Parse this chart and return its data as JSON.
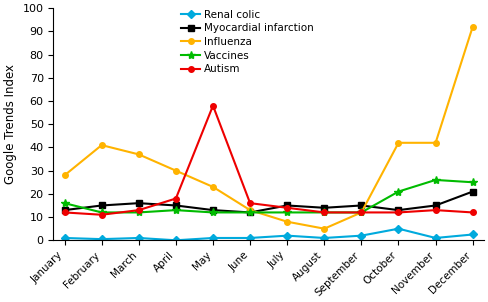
{
  "months": [
    "January",
    "February",
    "March",
    "April",
    "May",
    "June",
    "July",
    "August",
    "September",
    "October",
    "November",
    "December"
  ],
  "series": {
    "Renal colic": {
      "values": [
        1,
        0.5,
        1,
        0,
        1,
        1,
        2,
        1,
        2,
        5,
        1,
        2.5
      ],
      "color": "#00AADD",
      "marker": "D",
      "linewidth": 1.5,
      "markersize": 4
    },
    "Myocardial infarction": {
      "values": [
        13,
        15,
        16,
        15,
        13,
        12,
        15,
        14,
        15,
        13,
        15,
        21
      ],
      "color": "#000000",
      "marker": "s",
      "linewidth": 1.5,
      "markersize": 4
    },
    "Influenza": {
      "values": [
        28,
        41,
        37,
        30,
        23,
        13,
        8,
        5,
        12,
        42,
        42,
        92
      ],
      "color": "#FFB300",
      "marker": "o",
      "linewidth": 1.5,
      "markersize": 4
    },
    "Vaccines": {
      "values": [
        16,
        12,
        12,
        13,
        12,
        12,
        12,
        12,
        12,
        21,
        26,
        25
      ],
      "color": "#00BB00",
      "marker": "*",
      "linewidth": 1.5,
      "markersize": 6
    },
    "Autism": {
      "values": [
        12,
        11,
        13,
        18,
        58,
        16,
        14,
        12,
        12,
        12,
        13,
        12
      ],
      "color": "#EE0000",
      "marker": "o",
      "linewidth": 1.5,
      "markersize": 4
    }
  },
  "ylabel": "Google Trends Index",
  "ylim": [
    0,
    100
  ],
  "yticks": [
    0,
    10,
    20,
    30,
    40,
    50,
    60,
    70,
    80,
    90,
    100
  ],
  "legend_order": [
    "Renal colic",
    "Myocardial infarction",
    "Influenza",
    "Vaccines",
    "Autism"
  ],
  "background_color": "#ffffff",
  "figsize": [
    4.88,
    3.02
  ],
  "dpi": 100
}
